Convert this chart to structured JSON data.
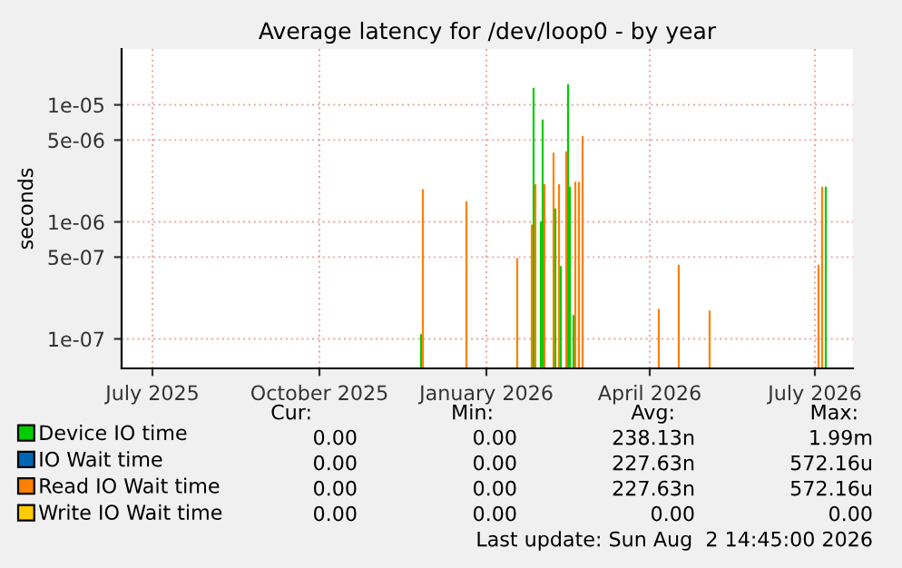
{
  "chart_data": {
    "type": "bar",
    "title": "Average latency for /dev/loop0 - by year",
    "ylabel": "seconds",
    "series": [
      {
        "name": "Device IO time",
        "color": "#00cc00",
        "x": [
          "2025-11-26",
          "2026-01-27",
          "2026-01-31",
          "2026-02-01",
          "2026-02-08",
          "2026-02-11",
          "2026-02-15",
          "2026-02-16",
          "2026-02-18",
          "2026-07-07"
        ],
        "values": [
          1.1e-07,
          1.4e-05,
          1e-06,
          7.5e-06,
          1.3e-06,
          4.2e-07,
          1.5e-05,
          2e-06,
          1.6e-07,
          2e-06
        ]
      },
      {
        "name": "IO Wait time",
        "color": "#0066b3"
      },
      {
        "name": "Read IO Wait time",
        "color": "#ff8000",
        "x": [
          "2025-11-27",
          "2025-12-21",
          "2026-01-18",
          "2026-01-26",
          "2026-01-28",
          "2026-02-02",
          "2026-02-07",
          "2026-02-10",
          "2026-02-14",
          "2026-02-19",
          "2026-02-21",
          "2026-02-23",
          "2026-04-06",
          "2026-04-17",
          "2026-05-04",
          "2026-07-03",
          "2026-07-05"
        ],
        "values": [
          1.9e-06,
          1.5e-06,
          4.9e-07,
          9.5e-07,
          2.1e-06,
          2.1e-06,
          3.9e-06,
          2.1e-06,
          4e-06,
          2.2e-06,
          2.2e-06,
          5.4e-06,
          1.8e-07,
          4.3e-07,
          1.75e-07,
          4.3e-07,
          2e-06
        ]
      },
      {
        "name": "Write IO Wait time",
        "color": "#ffcc00"
      }
    ],
    "log": "y",
    "ylim": [
      5.6e-08,
      3e-05
    ],
    "yticks": [
      {
        "value": 1e-07,
        "label": "1e-07"
      },
      {
        "value": 5e-07,
        "label": "5e-07"
      },
      {
        "value": 1e-06,
        "label": "1e-06"
      },
      {
        "value": 5e-06,
        "label": "5e-06"
      },
      {
        "value": 1e-05,
        "label": "1e-05"
      }
    ],
    "xlim": [
      "2025-06-14",
      "2026-07-22"
    ],
    "xticks": [
      {
        "value": "2025-07-01",
        "label": "July 2025"
      },
      {
        "value": "2025-10-01",
        "label": "October 2025"
      },
      {
        "value": "2026-01-01",
        "label": "January 2026"
      },
      {
        "value": "2026-04-01",
        "label": "April 2026"
      },
      {
        "value": "2026-07-01",
        "label": "July 2026"
      }
    ],
    "grid": true,
    "legend": "bottom",
    "annotations": [
      "Cur:",
      "Min:",
      "Avg:",
      "Max:",
      "0.00",
      "0.00",
      "238.13n",
      "1.99m",
      "0.00",
      "0.00",
      "227.63n",
      "572.16u",
      "0.00",
      "0.00",
      "227.63n",
      "572.16u",
      "0.00",
      "0.00",
      "0.00",
      "0.00",
      "Last update: Sun Aug  2 14:45:00 2026"
    ]
  }
}
